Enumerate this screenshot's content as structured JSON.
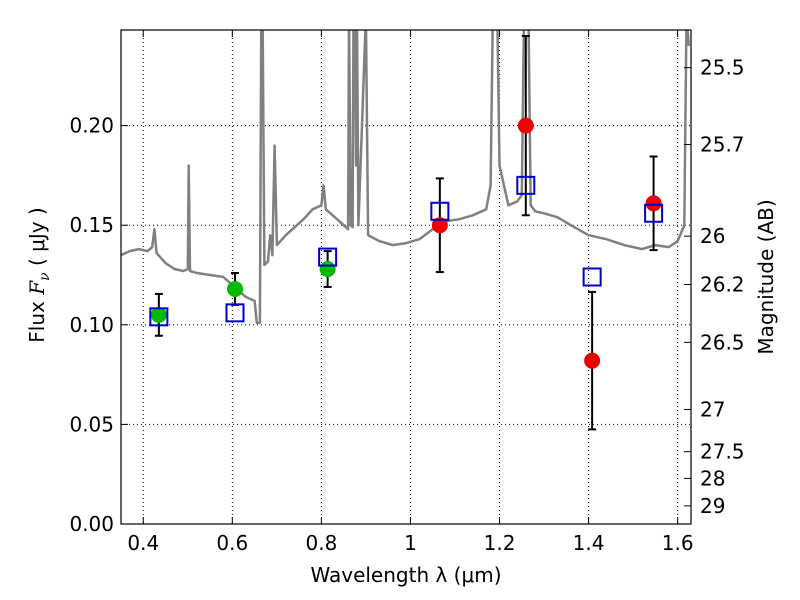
{
  "chart_data": {
    "type": "scatter",
    "xlabel": "Wavelength  λ (μm)",
    "ylabel_prefix": "Flux  ",
    "ylabel_var": "F",
    "ylabel_sub": "ν",
    "ylabel_suffix": " ( μJy )",
    "right_label": "Magnitude (AB)",
    "xlim": [
      0.35,
      1.63
    ],
    "ylim": [
      0.0,
      0.248
    ],
    "x_ticks": [
      0.4,
      0.6,
      0.8,
      1.0,
      1.2,
      1.4,
      1.6
    ],
    "x_tick_labels": [
      "0.4",
      "0.6",
      "0.8",
      "1",
      "1.2",
      "1.4",
      "1.6"
    ],
    "y_ticks": [
      0.0,
      0.05,
      0.1,
      0.15,
      0.2
    ],
    "y_tick_labels": [
      "0.00",
      "0.05",
      "0.10",
      "0.15",
      "0.20"
    ],
    "right_ticks": [
      {
        "label": "25.5",
        "flux": 0.2291
      },
      {
        "label": "25.7",
        "flux": 0.1905
      },
      {
        "label": "26",
        "flux": 0.1445
      },
      {
        "label": "26.2",
        "flux": 0.1202
      },
      {
        "label": "26.5",
        "flux": 0.0912
      },
      {
        "label": "27",
        "flux": 0.0575
      },
      {
        "label": "27.5",
        "flux": 0.0363
      },
      {
        "label": "28",
        "flux": 0.0229
      },
      {
        "label": "29",
        "flux": 0.0091
      }
    ],
    "grid": true,
    "series": [
      {
        "marker": "circle",
        "color": "#00bb00",
        "points": [
          {
            "x": 0.435,
            "y": 0.105,
            "yerr": 0.0105
          },
          {
            "x": 0.606,
            "y": 0.118,
            "yerr": 0.008
          },
          {
            "x": 0.814,
            "y": 0.128,
            "yerr": 0.009
          }
        ]
      },
      {
        "marker": "circle",
        "color": "#ee0000",
        "points": [
          {
            "x": 1.066,
            "y": 0.15,
            "yerr": 0.0235
          },
          {
            "x": 1.259,
            "y": 0.2,
            "yerr": 0.045
          },
          {
            "x": 1.408,
            "y": 0.082,
            "yerr": 0.0345
          },
          {
            "x": 1.546,
            "y": 0.161,
            "yerr": 0.0235
          }
        ]
      },
      {
        "marker": "open-square",
        "color": "#0000cc",
        "points": [
          {
            "x": 0.435,
            "y": 0.104
          },
          {
            "x": 0.606,
            "y": 0.106
          },
          {
            "x": 0.814,
            "y": 0.134
          },
          {
            "x": 1.066,
            "y": 0.157
          },
          {
            "x": 1.259,
            "y": 0.17
          },
          {
            "x": 1.408,
            "y": 0.124
          },
          {
            "x": 1.546,
            "y": 0.156
          }
        ]
      },
      {
        "type": "line",
        "color": "#808080",
        "points": [
          [
            0.35,
            0.135
          ],
          [
            0.37,
            0.137
          ],
          [
            0.39,
            0.138
          ],
          [
            0.41,
            0.137
          ],
          [
            0.42,
            0.139
          ],
          [
            0.425,
            0.148
          ],
          [
            0.43,
            0.136
          ],
          [
            0.45,
            0.131
          ],
          [
            0.47,
            0.128
          ],
          [
            0.49,
            0.127
          ],
          [
            0.5,
            0.128
          ],
          [
            0.502,
            0.18
          ],
          [
            0.505,
            0.127
          ],
          [
            0.52,
            0.126
          ],
          [
            0.55,
            0.125
          ],
          [
            0.58,
            0.124
          ],
          [
            0.6,
            0.12
          ],
          [
            0.63,
            0.114
          ],
          [
            0.65,
            0.112
          ],
          [
            0.655,
            0.101
          ],
          [
            0.662,
            0.101
          ],
          [
            0.665,
            0.255
          ],
          [
            0.668,
            0.255
          ],
          [
            0.672,
            0.13
          ],
          [
            0.68,
            0.132
          ],
          [
            0.685,
            0.145
          ],
          [
            0.69,
            0.135
          ],
          [
            0.695,
            0.19
          ],
          [
            0.7,
            0.14
          ],
          [
            0.72,
            0.145
          ],
          [
            0.74,
            0.149
          ],
          [
            0.76,
            0.153
          ],
          [
            0.78,
            0.158
          ],
          [
            0.8,
            0.16
          ],
          [
            0.805,
            0.17
          ],
          [
            0.81,
            0.158
          ],
          [
            0.83,
            0.154
          ],
          [
            0.85,
            0.15
          ],
          [
            0.86,
            0.148
          ],
          [
            0.862,
            0.255
          ],
          [
            0.866,
            0.15
          ],
          [
            0.87,
            0.149
          ],
          [
            0.872,
            0.255
          ],
          [
            0.875,
            0.255
          ],
          [
            0.878,
            0.18
          ],
          [
            0.88,
            0.255
          ],
          [
            0.883,
            0.15
          ],
          [
            0.9,
            0.255
          ],
          [
            0.905,
            0.145
          ],
          [
            0.93,
            0.142
          ],
          [
            0.96,
            0.14
          ],
          [
            0.99,
            0.141
          ],
          [
            1.02,
            0.143
          ],
          [
            1.05,
            0.148
          ],
          [
            1.08,
            0.152
          ],
          [
            1.11,
            0.153
          ],
          [
            1.14,
            0.155
          ],
          [
            1.17,
            0.158
          ],
          [
            1.18,
            0.17
          ],
          [
            1.185,
            0.255
          ],
          [
            1.195,
            0.255
          ],
          [
            1.2,
            0.18
          ],
          [
            1.22,
            0.16
          ],
          [
            1.24,
            0.162
          ],
          [
            1.25,
            0.165
          ],
          [
            1.255,
            0.255
          ],
          [
            1.265,
            0.255
          ],
          [
            1.27,
            0.16
          ],
          [
            1.28,
            0.157
          ],
          [
            1.3,
            0.156
          ],
          [
            1.33,
            0.154
          ],
          [
            1.36,
            0.15
          ],
          [
            1.4,
            0.145
          ],
          [
            1.44,
            0.143
          ],
          [
            1.48,
            0.14
          ],
          [
            1.52,
            0.138
          ],
          [
            1.55,
            0.14
          ],
          [
            1.58,
            0.139
          ],
          [
            1.6,
            0.142
          ],
          [
            1.615,
            0.15
          ],
          [
            1.62,
            0.255
          ],
          [
            1.625,
            0.24
          ]
        ]
      }
    ]
  }
}
